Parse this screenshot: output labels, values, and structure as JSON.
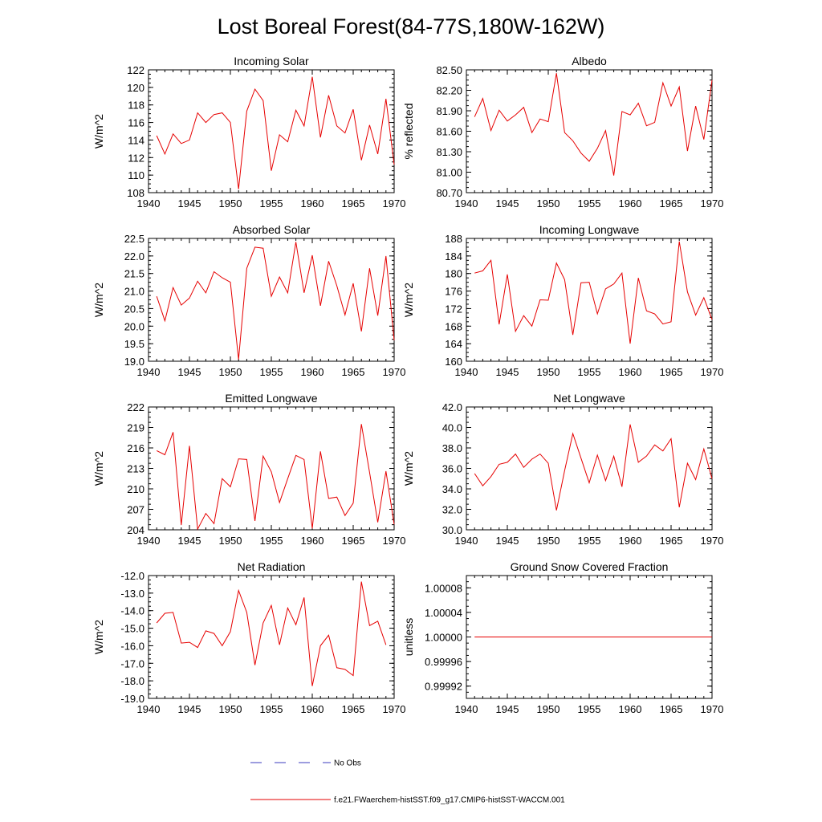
{
  "figure": {
    "title": "Lost Boreal Forest(84-77S,180W-162W)",
    "legend": {
      "obs_label": "No Obs",
      "model_label": "f.e21.FWaerchem-histSST.f09_g17.CMIP6-histSST-WACCM.001",
      "obs_color": "#3b3bbf",
      "model_color": "#e60000"
    }
  },
  "chart_data": [
    {
      "type": "line",
      "title": "Incoming Solar",
      "ylabel": "W/m^2",
      "xlim": [
        1940,
        1970
      ],
      "ylim": [
        108,
        122
      ],
      "yticks": [
        108,
        110,
        112,
        114,
        116,
        118,
        120,
        122
      ],
      "ytick_labels": [
        "108",
        "110",
        "112",
        "114",
        "116",
        "118",
        "120",
        "122"
      ],
      "xticks": [
        1940,
        1945,
        1950,
        1955,
        1960,
        1965,
        1970
      ],
      "x": [
        1941,
        1942,
        1943,
        1944,
        1945,
        1946,
        1947,
        1948,
        1949,
        1950,
        1951,
        1952,
        1953,
        1954,
        1955,
        1956,
        1957,
        1958,
        1959,
        1960,
        1961,
        1962,
        1963,
        1964,
        1965,
        1966,
        1967,
        1968,
        1969,
        1970
      ],
      "series": [
        {
          "color": "#e60000",
          "values": [
            114.5,
            112.4,
            114.7,
            113.6,
            114.0,
            117.1,
            116.0,
            116.9,
            117.1,
            116.0,
            108.4,
            117.3,
            119.8,
            118.5,
            110.5,
            114.6,
            113.8,
            117.4,
            115.6,
            121.2,
            114.3,
            119.1,
            115.6,
            114.8,
            117.5,
            111.7,
            115.7,
            112.4,
            118.7,
            111.2
          ]
        }
      ]
    },
    {
      "type": "line",
      "title": "Albedo",
      "ylabel": "% reflected",
      "xlim": [
        1940,
        1970
      ],
      "ylim": [
        80.7,
        82.5
      ],
      "yticks": [
        80.7,
        81.0,
        81.3,
        81.6,
        81.9,
        82.2,
        82.5
      ],
      "ytick_labels": [
        "80.70",
        "81.00",
        "81.30",
        "81.60",
        "81.90",
        "82.20",
        "82.50"
      ],
      "xticks": [
        1940,
        1945,
        1950,
        1955,
        1960,
        1965,
        1970
      ],
      "x": [
        1941,
        1942,
        1943,
        1944,
        1945,
        1946,
        1947,
        1948,
        1949,
        1950,
        1951,
        1952,
        1953,
        1954,
        1955,
        1956,
        1957,
        1958,
        1959,
        1960,
        1961,
        1962,
        1963,
        1964,
        1965,
        1966,
        1967,
        1968,
        1969,
        1970
      ],
      "series": [
        {
          "color": "#e60000",
          "values": [
            81.81,
            82.08,
            81.61,
            81.91,
            81.75,
            81.84,
            81.95,
            81.58,
            81.78,
            81.74,
            82.45,
            81.58,
            81.46,
            81.28,
            81.16,
            81.35,
            81.61,
            80.95,
            81.89,
            81.84,
            82.01,
            81.68,
            81.73,
            82.31,
            81.97,
            82.25,
            81.31,
            81.97,
            81.48,
            82.35
          ]
        }
      ]
    },
    {
      "type": "line",
      "title": "Absorbed Solar",
      "ylabel": "W/m^2",
      "xlim": [
        1940,
        1970
      ],
      "ylim": [
        19.0,
        22.5
      ],
      "yticks": [
        19.0,
        19.5,
        20.0,
        20.5,
        21.0,
        21.5,
        22.0,
        22.5
      ],
      "ytick_labels": [
        "19.0",
        "19.5",
        "20.0",
        "20.5",
        "21.0",
        "21.5",
        "22.0",
        "22.5"
      ],
      "xticks": [
        1940,
        1945,
        1950,
        1955,
        1960,
        1965,
        1970
      ],
      "x": [
        1941,
        1942,
        1943,
        1944,
        1945,
        1946,
        1947,
        1948,
        1949,
        1950,
        1951,
        1952,
        1953,
        1954,
        1955,
        1956,
        1957,
        1958,
        1959,
        1960,
        1961,
        1962,
        1963,
        1964,
        1965,
        1966,
        1967,
        1968,
        1969,
        1970
      ],
      "series": [
        {
          "color": "#e60000",
          "values": [
            20.85,
            20.15,
            21.1,
            20.6,
            20.8,
            21.28,
            20.95,
            21.55,
            21.38,
            21.25,
            19.05,
            21.65,
            22.25,
            22.22,
            20.85,
            21.4,
            20.95,
            22.4,
            20.95,
            22.02,
            20.58,
            21.85,
            21.15,
            20.32,
            21.22,
            19.85,
            21.65,
            20.3,
            22.0,
            19.6
          ]
        }
      ]
    },
    {
      "type": "line",
      "title": "Incoming Longwave",
      "ylabel": "W/m^2",
      "xlim": [
        1940,
        1970
      ],
      "ylim": [
        160,
        188
      ],
      "yticks": [
        160,
        164,
        168,
        172,
        176,
        180,
        184,
        188
      ],
      "ytick_labels": [
        "160",
        "164",
        "168",
        "172",
        "176",
        "180",
        "184",
        "188"
      ],
      "xticks": [
        1940,
        1945,
        1950,
        1955,
        1960,
        1965,
        1970
      ],
      "x": [
        1941,
        1942,
        1943,
        1944,
        1945,
        1946,
        1947,
        1948,
        1949,
        1950,
        1951,
        1952,
        1953,
        1954,
        1955,
        1956,
        1957,
        1958,
        1959,
        1960,
        1961,
        1962,
        1963,
        1964,
        1965,
        1966,
        1967,
        1968,
        1969,
        1970
      ],
      "series": [
        {
          "color": "#e60000",
          "values": [
            180.1,
            180.6,
            183.0,
            168.4,
            179.8,
            166.8,
            170.4,
            168.0,
            174.0,
            173.9,
            182.4,
            178.6,
            166.0,
            177.9,
            178.0,
            170.8,
            176.5,
            177.6,
            180.1,
            164.0,
            179.0,
            171.5,
            170.8,
            168.5,
            169.0,
            187.3,
            175.8,
            170.5,
            174.5,
            169.5
          ]
        }
      ]
    },
    {
      "type": "line",
      "title": "Emitted Longwave",
      "ylabel": "W/m^2",
      "xlim": [
        1940,
        1970
      ],
      "ylim": [
        204,
        222
      ],
      "yticks": [
        204,
        207,
        210,
        213,
        216,
        219,
        222
      ],
      "ytick_labels": [
        "204",
        "207",
        "210",
        "213",
        "216",
        "219",
        "222"
      ],
      "xticks": [
        1940,
        1945,
        1950,
        1955,
        1960,
        1965,
        1970
      ],
      "x": [
        1941,
        1942,
        1943,
        1944,
        1945,
        1946,
        1947,
        1948,
        1949,
        1950,
        1951,
        1952,
        1953,
        1954,
        1955,
        1956,
        1957,
        1958,
        1959,
        1960,
        1961,
        1962,
        1963,
        1964,
        1965,
        1966,
        1967,
        1968,
        1969,
        1970
      ],
      "series": [
        {
          "color": "#e60000",
          "values": [
            215.6,
            215.0,
            218.3,
            204.7,
            216.3,
            204.1,
            206.4,
            204.9,
            211.5,
            210.3,
            214.4,
            214.3,
            205.3,
            214.8,
            212.5,
            208.0,
            211.5,
            214.9,
            214.3,
            204.2,
            215.5,
            208.6,
            208.8,
            206.1,
            207.9,
            219.5,
            212.4,
            205.1,
            212.6,
            204.8
          ]
        }
      ]
    },
    {
      "type": "line",
      "title": "Net Longwave",
      "ylabel": "W/m^2",
      "xlim": [
        1940,
        1970
      ],
      "ylim": [
        30.0,
        42.0
      ],
      "yticks": [
        30.0,
        32.0,
        34.0,
        36.0,
        38.0,
        40.0,
        42.0
      ],
      "ytick_labels": [
        "30.0",
        "32.0",
        "34.0",
        "36.0",
        "38.0",
        "40.0",
        "42.0"
      ],
      "xticks": [
        1940,
        1945,
        1950,
        1955,
        1960,
        1965,
        1970
      ],
      "x": [
        1941,
        1942,
        1943,
        1944,
        1945,
        1946,
        1947,
        1948,
        1949,
        1950,
        1951,
        1952,
        1953,
        1954,
        1955,
        1956,
        1957,
        1958,
        1959,
        1960,
        1961,
        1962,
        1963,
        1964,
        1965,
        1966,
        1967,
        1968,
        1969,
        1970
      ],
      "series": [
        {
          "color": "#e60000",
          "values": [
            35.5,
            34.3,
            35.2,
            36.4,
            36.6,
            37.4,
            36.1,
            36.9,
            37.4,
            36.5,
            31.9,
            35.8,
            39.4,
            37.0,
            34.6,
            37.3,
            34.8,
            37.2,
            34.2,
            40.3,
            36.6,
            37.2,
            38.3,
            37.7,
            38.9,
            32.2,
            36.5,
            34.9,
            37.9,
            35.0
          ]
        }
      ]
    },
    {
      "type": "line",
      "title": "Net Radiation",
      "ylabel": "W/m^2",
      "xlim": [
        1940,
        1970
      ],
      "ylim": [
        -19.0,
        -12.0
      ],
      "yticks": [
        -19.0,
        -18.0,
        -17.0,
        -16.0,
        -15.0,
        -14.0,
        -13.0,
        -12.0
      ],
      "ytick_labels": [
        "-19.0",
        "-18.0",
        "-17.0",
        "-16.0",
        "-15.0",
        "-14.0",
        "-13.0",
        "-12.0"
      ],
      "xticks": [
        1940,
        1945,
        1950,
        1955,
        1960,
        1965,
        1970
      ],
      "x": [
        1941,
        1942,
        1943,
        1944,
        1945,
        1946,
        1947,
        1948,
        1949,
        1950,
        1951,
        1952,
        1953,
        1954,
        1955,
        1956,
        1957,
        1958,
        1959,
        1960,
        1961,
        1962,
        1963,
        1964,
        1965,
        1966,
        1967,
        1968,
        1969
      ],
      "series": [
        {
          "color": "#e60000",
          "values": [
            -14.7,
            -14.15,
            -14.1,
            -15.85,
            -15.8,
            -16.1,
            -15.15,
            -15.3,
            -16.0,
            -15.2,
            -12.85,
            -14.1,
            -17.1,
            -14.7,
            -13.7,
            -15.95,
            -13.85,
            -14.8,
            -13.25,
            -18.3,
            -16.0,
            -15.4,
            -17.25,
            -17.35,
            -17.7,
            -12.35,
            -14.85,
            -14.6,
            -15.95
          ]
        }
      ]
    },
    {
      "type": "line",
      "title": "Ground Snow Covered Fraction",
      "ylabel": "unitless",
      "xlim": [
        1940,
        1970
      ],
      "ylim": [
        0.9999,
        1.0001
      ],
      "yticks": [
        0.99992,
        0.99996,
        1.0,
        1.00004,
        1.00008
      ],
      "ytick_labels": [
        "0.99992",
        "0.99996",
        "1.00000",
        "1.00004",
        "1.00008"
      ],
      "xticks": [
        1940,
        1945,
        1950,
        1955,
        1960,
        1965,
        1970
      ],
      "x": [
        1941,
        1942,
        1943,
        1944,
        1945,
        1946,
        1947,
        1948,
        1949,
        1950,
        1951,
        1952,
        1953,
        1954,
        1955,
        1956,
        1957,
        1958,
        1959,
        1960,
        1961,
        1962,
        1963,
        1964,
        1965,
        1966,
        1967,
        1968,
        1969,
        1970
      ],
      "series": [
        {
          "color": "#e60000",
          "values": [
            1,
            1,
            1,
            1,
            1,
            1,
            1,
            1,
            1,
            1,
            1,
            1,
            1,
            1,
            1,
            1,
            1,
            1,
            1,
            1,
            1,
            1,
            1,
            1,
            1,
            1,
            1,
            1,
            1,
            1
          ]
        }
      ]
    }
  ]
}
